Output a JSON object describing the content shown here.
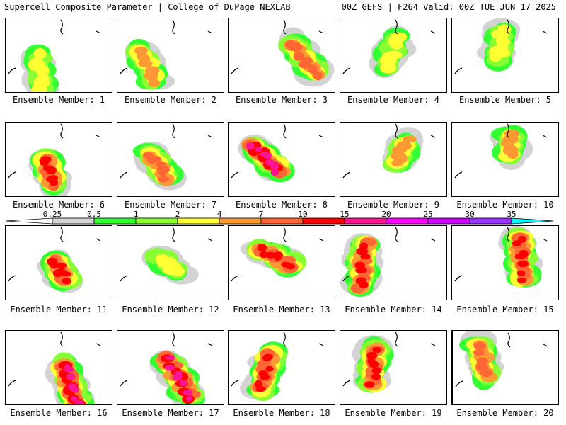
{
  "header": {
    "title_left": "Supercell Composite Parameter | College of DuPage NEXLAB",
    "title_right": "00Z GEFS | F264 Valid: 00Z TUE JUN 17 2025"
  },
  "colorbar": {
    "labels": [
      "0.25",
      "0.5",
      "1",
      "2",
      "4",
      "7",
      "10",
      "15",
      "20",
      "25",
      "30",
      "35"
    ],
    "colors": [
      "#d3d3d3",
      "#33ff33",
      "#88ff33",
      "#ffff33",
      "#ff9933",
      "#ff6633",
      "#ff0000",
      "#ff1493",
      "#ff00ff",
      "#cc00ff",
      "#9933ff",
      "#00ffff"
    ]
  },
  "members": [
    {
      "label": "Ensemble Member: 1",
      "level": 2
    },
    {
      "label": "Ensemble Member: 2",
      "level": 4
    },
    {
      "label": "Ensemble Member: 3",
      "level": 7
    },
    {
      "label": "Ensemble Member: 4",
      "level": 2
    },
    {
      "label": "Ensemble Member: 5",
      "level": 2
    },
    {
      "label": "Ensemble Member: 6",
      "level": 10
    },
    {
      "label": "Ensemble Member: 7",
      "level": 7
    },
    {
      "label": "Ensemble Member: 8",
      "level": 15
    },
    {
      "label": "Ensemble Member: 9",
      "level": 4
    },
    {
      "label": "Ensemble Member: 10",
      "level": 4
    },
    {
      "label": "Ensemble Member: 11",
      "level": 10
    },
    {
      "label": "Ensemble Member: 12",
      "level": 2
    },
    {
      "label": "Ensemble Member: 13",
      "level": 10
    },
    {
      "label": "Ensemble Member: 14",
      "level": 10
    },
    {
      "label": "Ensemble Member: 15",
      "level": 10
    },
    {
      "label": "Ensemble Member: 16",
      "level": 15
    },
    {
      "label": "Ensemble Member: 17",
      "level": 15
    },
    {
      "label": "Ensemble Member: 18",
      "level": 10
    },
    {
      "label": "Ensemble Member: 19",
      "level": 10
    },
    {
      "label": "Ensemble Member: 20",
      "level": 7
    }
  ]
}
